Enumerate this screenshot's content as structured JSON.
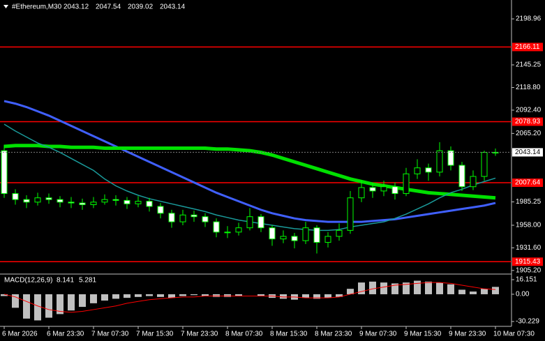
{
  "chart_data": [
    {
      "type": "candlestick",
      "title": "#Ethereum,M30",
      "open": [
        2045,
        1995,
        1988,
        1985,
        1990,
        1988,
        1985,
        1984,
        1982,
        1985,
        1988,
        1987,
        1983,
        1986,
        1980,
        1972,
        1962,
        1970,
        1968,
        1962,
        1950,
        1950,
        1955,
        1968,
        1955,
        1942,
        1945,
        1940,
        1955,
        1938,
        1945,
        1952,
        1990,
        2002,
        1998,
        2003,
        1995,
        2018,
        2025,
        2020,
        2045,
        2028,
        2003,
        2015,
        2043.12
      ],
      "high": [
        2052,
        2000,
        1993,
        1996,
        1995,
        1992,
        1991,
        1989,
        1991,
        1994,
        1993,
        1991,
        1992,
        1990,
        1984,
        1976,
        1976,
        1975,
        1972,
        1966,
        1957,
        1961,
        1978,
        1971,
        1958,
        1952,
        1949,
        1962,
        1958,
        1950,
        1960,
        1998,
        2010,
        2008,
        2010,
        2008,
        2025,
        2035,
        2030,
        2055,
        2050,
        2032,
        2022,
        2045,
        2047.54
      ],
      "low": [
        1990,
        1982,
        1978,
        1981,
        1983,
        1979,
        1978,
        1976,
        1978,
        1982,
        1981,
        1977,
        1979,
        1974,
        1966,
        1955,
        1958,
        1962,
        1956,
        1944,
        1943,
        1946,
        1952,
        1950,
        1934,
        1937,
        1931,
        1936,
        1925,
        1932,
        1940,
        1948,
        1985,
        1990,
        1992,
        1988,
        1992,
        2012,
        2010,
        2015,
        2022,
        1998,
        1999,
        2010,
        2039.02
      ],
      "close": [
        1995,
        1988,
        1985,
        1990,
        1988,
        1985,
        1984,
        1982,
        1985,
        1988,
        1987,
        1983,
        1986,
        1980,
        1972,
        1962,
        1970,
        1968,
        1962,
        1950,
        1950,
        1955,
        1968,
        1955,
        1942,
        1945,
        1940,
        1955,
        1938,
        1945,
        1952,
        1990,
        2002,
        1998,
        2003,
        1995,
        2018,
        2025,
        2020,
        2045,
        2028,
        2003,
        2015,
        2043,
        2043.14
      ],
      "candle_colors": {
        "outline": "#00ff00",
        "bull": "#000000",
        "bear": "#ffffff"
      },
      "moving_averages": [
        {
          "color": "#4060ff",
          "width": 3,
          "values": [
            2103,
            2100,
            2096,
            2091,
            2086,
            2080,
            2074,
            2068,
            2062,
            2056,
            2050,
            2044,
            2038,
            2032,
            2026,
            2020,
            2014,
            2008,
            2002,
            1996,
            1991,
            1986,
            1981,
            1976,
            1972,
            1969,
            1966,
            1964,
            1963,
            1962,
            1962,
            1962,
            1962,
            1963,
            1964,
            1965,
            1967,
            1969,
            1971,
            1973,
            1975,
            1977,
            1979,
            1981,
            1984
          ]
        },
        {
          "color": "#00e000",
          "width": 5,
          "values": [
            2050,
            2051,
            2051,
            2051,
            2050,
            2050,
            2049,
            2049,
            2049,
            2048,
            2048,
            2048,
            2048,
            2048,
            2048,
            2048,
            2048,
            2048,
            2048,
            2047,
            2047,
            2046,
            2045,
            2043,
            2040,
            2036,
            2032,
            2028,
            2024,
            2020,
            2016,
            2012,
            2009,
            2006,
            2004,
            2002,
            2000,
            1998,
            1996,
            1995,
            1994,
            1993,
            1992,
            1991,
            1990
          ]
        },
        {
          "color": "#1a9a9a",
          "width": 1.5,
          "values": [
            2076,
            2068,
            2061,
            2054,
            2049,
            2043,
            2036,
            2029,
            2022,
            2012,
            2004,
            1998,
            1993,
            1989,
            1986,
            1983,
            1980,
            1977,
            1974,
            1970,
            1967,
            1964,
            1962,
            1960,
            1958,
            1956,
            1954,
            1953,
            1952,
            1952,
            1953,
            1956,
            1958,
            1960,
            1962,
            1966,
            1971,
            1977,
            1983,
            1990,
            1996,
            2000,
            2005,
            2009,
            2013
          ]
        }
      ],
      "levels": [
        2166.11,
        2078.93,
        2007.64,
        1915.43
      ],
      "level_color": "#ff0000",
      "ylim": [
        1901,
        2221
      ],
      "yticks": [
        2198.96,
        2145.25,
        {
          "value": 2118.8,
          "label": "2118.80"
        },
        {
          "value": 2092.4,
          "label": "2092.40"
        },
        {
          "value": 2065.2,
          "label": "2065.20"
        },
        1985.25,
        {
          "value": 1958.0,
          "label": "1958.00"
        },
        {
          "value": 1931.6,
          "label": "1931.60"
        },
        {
          "value": 1905.2,
          "label": "1905.20"
        }
      ],
      "grid": false
    },
    {
      "type": "macd",
      "title": "MACD(12,26,9)",
      "series": [
        {
          "color": "#c0c0c0",
          "values": [
            -2,
            -15,
            -27,
            -29,
            -26,
            -22,
            -18,
            -14,
            -10,
            -7,
            -5,
            -4,
            -3,
            -2,
            -3,
            -4,
            -2,
            -1,
            -2,
            -3,
            -3,
            -2,
            0,
            -2,
            -4,
            -5,
            -6,
            -4,
            -5,
            -4,
            -3,
            6,
            13,
            14,
            13,
            12,
            13,
            15,
            14,
            13,
            11,
            5,
            3,
            6,
            8.141
          ]
        },
        {
          "color": "#ff0000",
          "values": [
            0,
            -3,
            -8,
            -13,
            -17,
            -19,
            -20,
            -19,
            -17,
            -15,
            -13,
            -10,
            -8,
            -6,
            -5,
            -4,
            -3,
            -3,
            -2,
            -2,
            -2,
            -2,
            -2,
            -2,
            -2,
            -3,
            -3,
            -4,
            -4,
            -4,
            -3,
            0,
            3,
            6,
            8,
            10,
            11,
            12,
            13,
            13,
            12,
            10,
            8,
            6,
            5.281
          ]
        }
      ],
      "ylim": [
        -35.6,
        21.6
      ],
      "yticks": [
        16.151,
        {
          "value": 0,
          "label": "0.00"
        },
        -30.229
      ],
      "xticks": [
        {
          "value": 0,
          "label": "6 Mar 2026"
        },
        {
          "value": 4,
          "label": "6 Mar 23:30"
        },
        {
          "value": 8,
          "label": "7 Mar 07:30"
        },
        {
          "value": 12,
          "label": "7 Mar 15:30"
        },
        {
          "value": 16,
          "label": "7 Mar 23:30"
        },
        {
          "value": 20,
          "label": "8 Mar 07:30"
        },
        {
          "value": 24,
          "label": "8 Mar 15:30"
        },
        {
          "value": 28,
          "label": "8 Mar 23:30"
        },
        {
          "value": 32,
          "label": "9 Mar 07:30"
        },
        {
          "value": 36,
          "label": "9 Mar 15:30"
        },
        {
          "value": 40,
          "label": "9 Mar 23:30"
        },
        {
          "value": 44,
          "label": "10 Mar 07:30"
        }
      ]
    }
  ]
}
